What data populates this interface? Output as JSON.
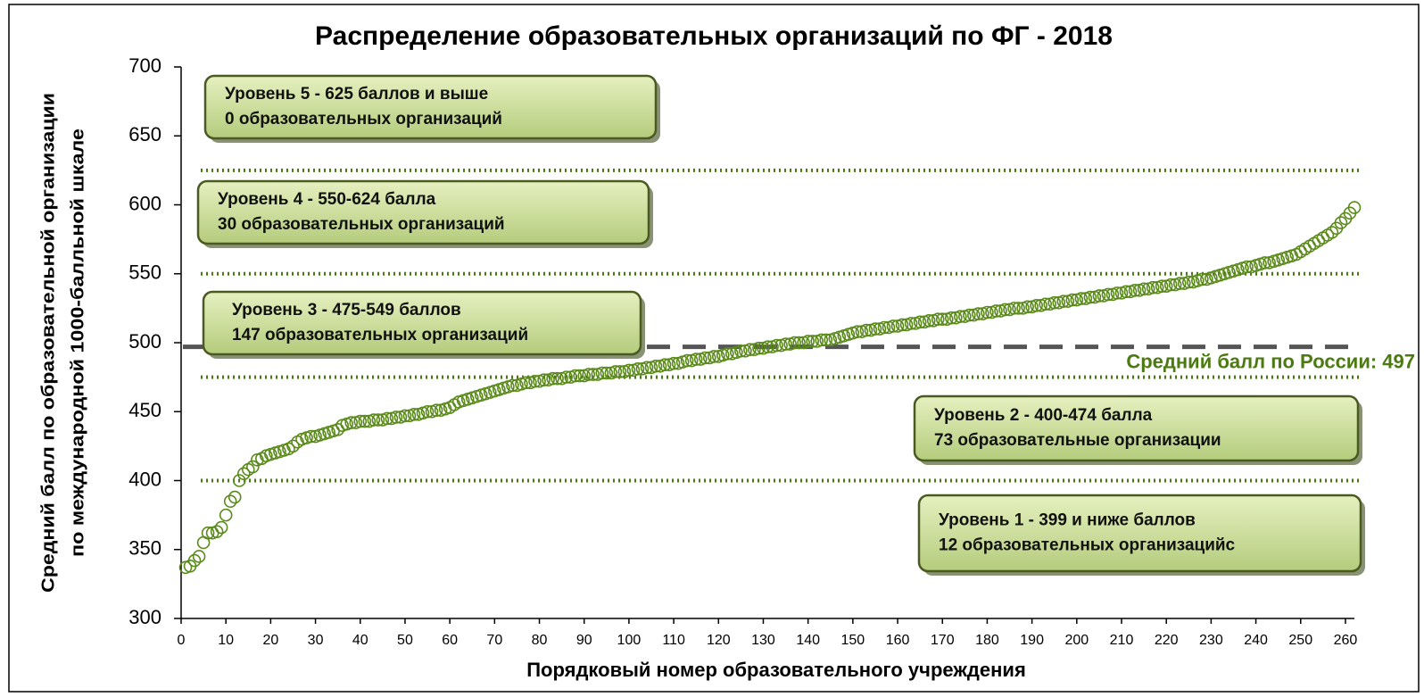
{
  "chart_data": {
    "type": "scatter",
    "title": "Распределение образовательных организаций по ФГ - 2018",
    "x_label": "Порядковый номер образовательного учреждения",
    "y_label": [
      "Средний балл по образовательной организации",
      "по международной 1000-балльной шкале"
    ],
    "xlim": [
      0,
      262
    ],
    "ylim": [
      300,
      700
    ],
    "xticks": [
      0,
      10,
      20,
      30,
      40,
      50,
      60,
      70,
      80,
      90,
      100,
      110,
      120,
      130,
      140,
      150,
      160,
      170,
      180,
      190,
      200,
      210,
      220,
      230,
      240,
      250,
      260
    ],
    "yticks": [
      300,
      350,
      400,
      450,
      500,
      550,
      600,
      650,
      700
    ],
    "color": "#5a8a1a",
    "reference_lines": [
      400,
      475,
      550,
      625
    ],
    "mean_line": {
      "value": 497,
      "label": "Средний балл по России: 497"
    },
    "annotations": [
      [
        "Уровень 5 - 625 баллов и выше",
        "0 образовательных организаций"
      ],
      [
        "Уровень 4 - 550-624 балла",
        "30 образовательных организаций"
      ],
      [
        "Уровень 3 - 475-549 баллов",
        "147 образовательных организаций"
      ],
      [
        "Уровень 2 - 400-474 балла",
        "73 образовательные организации"
      ],
      [
        "Уровень 1 - 399 и ниже баллов",
        "12 образовательных организацийс"
      ]
    ],
    "x": [
      1,
      2,
      3,
      4,
      5,
      6,
      7,
      8,
      9,
      10,
      11,
      12,
      13,
      14,
      15,
      16,
      17,
      18,
      19,
      20,
      21,
      22,
      23,
      24,
      25,
      26,
      27,
      28,
      29,
      30,
      31,
      32,
      33,
      34,
      35,
      36,
      37,
      38,
      39,
      40,
      41,
      42,
      43,
      44,
      45,
      46,
      47,
      48,
      49,
      50,
      51,
      52,
      53,
      54,
      55,
      56,
      57,
      58,
      59,
      60,
      61,
      62,
      63,
      64,
      65,
      66,
      67,
      68,
      69,
      70,
      71,
      72,
      73,
      74,
      75,
      76,
      77,
      78,
      79,
      80,
      81,
      82,
      83,
      84,
      85,
      86,
      87,
      88,
      89,
      90,
      91,
      92,
      93,
      94,
      95,
      96,
      97,
      98,
      99,
      100,
      101,
      102,
      103,
      104,
      105,
      106,
      107,
      108,
      109,
      110,
      111,
      112,
      113,
      114,
      115,
      116,
      117,
      118,
      119,
      120,
      121,
      122,
      123,
      124,
      125,
      126,
      127,
      128,
      129,
      130,
      131,
      132,
      133,
      134,
      135,
      136,
      137,
      138,
      139,
      140,
      141,
      142,
      143,
      144,
      145,
      146,
      147,
      148,
      149,
      150,
      151,
      152,
      153,
      154,
      155,
      156,
      157,
      158,
      159,
      160,
      161,
      162,
      163,
      164,
      165,
      166,
      167,
      168,
      169,
      170,
      171,
      172,
      173,
      174,
      175,
      176,
      177,
      178,
      179,
      180,
      181,
      182,
      183,
      184,
      185,
      186,
      187,
      188,
      189,
      190,
      191,
      192,
      193,
      194,
      195,
      196,
      197,
      198,
      199,
      200,
      201,
      202,
      203,
      204,
      205,
      206,
      207,
      208,
      209,
      210,
      211,
      212,
      213,
      214,
      215,
      216,
      217,
      218,
      219,
      220,
      221,
      222,
      223,
      224,
      225,
      226,
      227,
      228,
      229,
      230,
      231,
      232,
      233,
      234,
      235,
      236,
      237,
      238,
      239,
      240,
      241,
      242,
      243,
      244,
      245,
      246,
      247,
      248,
      249,
      250,
      251,
      252,
      253,
      254,
      255,
      256,
      257,
      258,
      259,
      260,
      261,
      262
    ],
    "values": [
      337,
      338,
      342,
      345,
      355,
      362,
      362,
      363,
      366,
      375,
      385,
      388,
      400,
      405,
      408,
      410,
      415,
      416,
      418,
      419,
      420,
      421,
      422,
      423,
      425,
      428,
      430,
      431,
      432,
      432,
      433,
      434,
      435,
      436,
      437,
      440,
      441,
      442,
      442,
      443,
      443,
      443,
      444,
      444,
      444,
      445,
      445,
      446,
      446,
      447,
      447,
      448,
      448,
      449,
      450,
      450,
      451,
      451,
      452,
      453,
      455,
      457,
      458,
      459,
      460,
      461,
      462,
      463,
      464,
      465,
      466,
      467,
      468,
      469,
      469,
      470,
      471,
      471,
      472,
      472,
      473,
      473,
      474,
      474,
      474,
      475,
      475,
      476,
      476,
      476,
      477,
      477,
      477,
      478,
      478,
      478,
      479,
      479,
      479,
      480,
      480,
      481,
      481,
      482,
      482,
      483,
      483,
      484,
      484,
      485,
      485,
      486,
      487,
      487,
      488,
      488,
      489,
      489,
      490,
      490,
      491,
      492,
      492,
      493,
      494,
      494,
      495,
      495,
      496,
      496,
      497,
      497,
      498,
      498,
      499,
      499,
      500,
      500,
      500,
      501,
      501,
      501,
      502,
      502,
      502,
      503,
      504,
      505,
      506,
      507,
      508,
      508,
      509,
      509,
      510,
      510,
      511,
      511,
      512,
      512,
      513,
      513,
      514,
      514,
      515,
      515,
      516,
      516,
      517,
      517,
      517,
      518,
      518,
      519,
      519,
      520,
      520,
      521,
      521,
      522,
      522,
      523,
      523,
      524,
      524,
      525,
      525,
      525,
      526,
      526,
      527,
      527,
      528,
      528,
      529,
      529,
      530,
      530,
      531,
      531,
      532,
      532,
      533,
      533,
      534,
      534,
      535,
      535,
      536,
      536,
      537,
      537,
      538,
      538,
      539,
      539,
      540,
      540,
      541,
      541,
      542,
      542,
      543,
      543,
      544,
      544,
      545,
      546,
      546,
      547,
      548,
      549,
      550,
      551,
      552,
      553,
      554,
      555,
      555,
      556,
      557,
      558,
      558,
      559,
      560,
      561,
      562,
      563,
      564,
      566,
      568,
      570,
      572,
      574,
      576,
      578,
      580,
      583,
      587,
      590,
      594,
      598
    ]
  }
}
